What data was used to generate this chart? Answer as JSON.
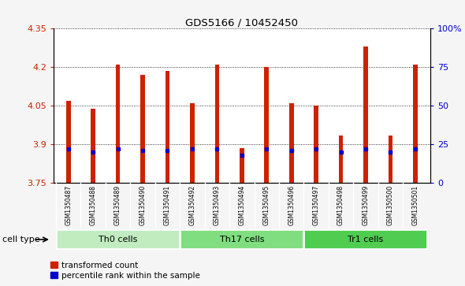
{
  "title": "GDS5166 / 10452450",
  "samples": [
    "GSM1350487",
    "GSM1350488",
    "GSM1350489",
    "GSM1350490",
    "GSM1350491",
    "GSM1350492",
    "GSM1350493",
    "GSM1350494",
    "GSM1350495",
    "GSM1350496",
    "GSM1350497",
    "GSM1350498",
    "GSM1350499",
    "GSM1350500",
    "GSM1350501"
  ],
  "transformed_count": [
    4.07,
    4.04,
    4.21,
    4.17,
    4.185,
    4.06,
    4.21,
    3.885,
    4.2,
    4.06,
    4.05,
    3.935,
    4.28,
    3.935,
    4.21
  ],
  "percentile_values": [
    22,
    20,
    22,
    21,
    21,
    22,
    22,
    18,
    22,
    21,
    22,
    20,
    22,
    20,
    22
  ],
  "cell_groups": [
    {
      "label": "Th0 cells",
      "start": 0,
      "end": 5,
      "color": "#c0ecc0"
    },
    {
      "label": "Th17 cells",
      "start": 5,
      "end": 10,
      "color": "#80de80"
    },
    {
      "label": "Tr1 cells",
      "start": 10,
      "end": 15,
      "color": "#50cc50"
    }
  ],
  "bar_color": "#cc2200",
  "percentile_color": "#0000cc",
  "ylim_left": [
    3.75,
    4.35
  ],
  "yticks_left": [
    3.75,
    3.9,
    4.05,
    4.2,
    4.35
  ],
  "ytick_labels_left": [
    "3.75",
    "3.9",
    "4.05",
    "4.2",
    "4.35"
  ],
  "ylim_right": [
    0,
    100
  ],
  "yticks_right": [
    0,
    25,
    50,
    75,
    100
  ],
  "ytick_labels_right": [
    "0",
    "25",
    "50",
    "75",
    "100%"
  ],
  "bar_width": 0.18,
  "gray_bg": "#d0d0d0",
  "white_bg": "#ffffff",
  "figure_bg": "#f5f5f5",
  "cell_type_label": "cell type",
  "legend_transformed": "transformed count",
  "legend_percentile": "percentile rank within the sample"
}
